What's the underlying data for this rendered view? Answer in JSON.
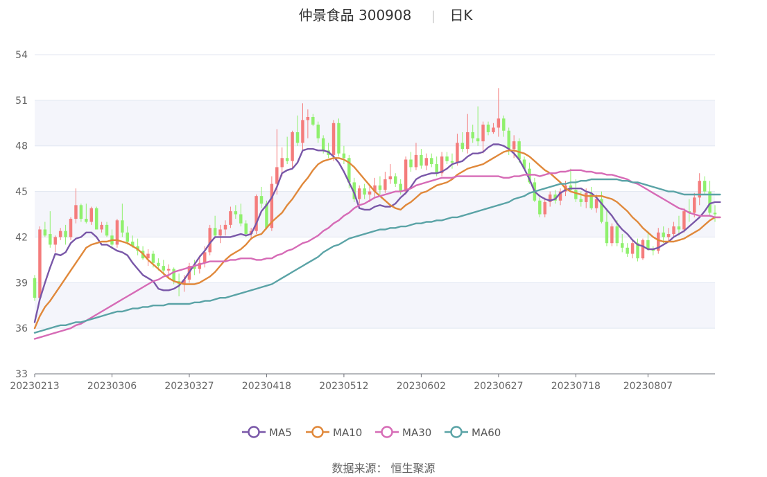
{
  "chart_data": {
    "type": "candlestick",
    "title": "仲景食品 300908",
    "subtitle": "日K",
    "source": "数据来源： 恒生聚源",
    "ylim": [
      33,
      54
    ],
    "yticks": [
      33,
      36,
      39,
      42,
      45,
      48,
      51,
      54
    ],
    "x_tick_labels": [
      "20230213",
      "20230306",
      "20230327",
      "20230418",
      "20230512",
      "20230602",
      "20230627",
      "20230718",
      "20230807"
    ],
    "x_tick_indices": [
      0,
      15,
      30,
      45,
      60,
      75,
      90,
      105,
      119
    ],
    "up_color": "#f47c7c",
    "down_color": "#8ff06d",
    "band_color": "#f4f5fb",
    "ohlc": [
      [
        39.3,
        39.5,
        37.8,
        38.0
      ],
      [
        38.0,
        42.7,
        37.8,
        42.5
      ],
      [
        42.5,
        43.0,
        42.0,
        42.1
      ],
      [
        42.2,
        43.7,
        41.3,
        41.5
      ],
      [
        41.5,
        42.1,
        41.0,
        42.0
      ],
      [
        42.0,
        42.6,
        41.8,
        42.4
      ],
      [
        42.4,
        42.8,
        41.5,
        42.0
      ],
      [
        42.0,
        43.3,
        41.8,
        43.2
      ],
      [
        43.2,
        45.2,
        42.9,
        44.1
      ],
      [
        44.1,
        44.2,
        43.0,
        43.2
      ],
      [
        43.2,
        44.2,
        42.9,
        43.0
      ],
      [
        43.0,
        44.0,
        42.8,
        43.9
      ],
      [
        43.9,
        44.0,
        42.5,
        42.5
      ],
      [
        42.5,
        43.0,
        42.3,
        42.8
      ],
      [
        42.8,
        43.0,
        42.0,
        42.1
      ],
      [
        42.1,
        42.5,
        41.2,
        41.5
      ],
      [
        41.5,
        43.2,
        41.3,
        43.1
      ],
      [
        43.1,
        44.2,
        42.0,
        42.3
      ],
      [
        42.3,
        42.7,
        41.5,
        41.7
      ],
      [
        41.7,
        42.1,
        41.3,
        41.4
      ],
      [
        41.4,
        41.9,
        40.8,
        41.1
      ],
      [
        41.1,
        41.4,
        40.5,
        40.6
      ],
      [
        40.6,
        41.2,
        40.1,
        40.9
      ],
      [
        40.9,
        41.1,
        40.0,
        40.3
      ],
      [
        40.3,
        40.6,
        39.8,
        40.1
      ],
      [
        40.1,
        40.5,
        39.5,
        39.8
      ],
      [
        39.8,
        40.2,
        39.3,
        39.9
      ],
      [
        39.9,
        40.0,
        38.9,
        39.1
      ],
      [
        39.1,
        39.6,
        38.1,
        38.9
      ],
      [
        38.9,
        39.5,
        38.4,
        39.2
      ],
      [
        39.2,
        40.3,
        39.0,
        40.1
      ],
      [
        40.1,
        40.5,
        39.5,
        39.9
      ],
      [
        39.9,
        40.8,
        39.6,
        40.3
      ],
      [
        40.3,
        41.4,
        40.0,
        41.0
      ],
      [
        41.0,
        42.8,
        40.8,
        42.6
      ],
      [
        42.6,
        43.4,
        41.9,
        42.1
      ],
      [
        42.1,
        42.8,
        41.6,
        42.5
      ],
      [
        42.5,
        43.1,
        42.1,
        42.8
      ],
      [
        42.8,
        44.0,
        42.6,
        43.7
      ],
      [
        43.7,
        44.1,
        43.2,
        43.5
      ],
      [
        43.5,
        44.2,
        42.7,
        42.9
      ],
      [
        42.9,
        43.1,
        42.0,
        42.2
      ],
      [
        42.2,
        42.6,
        41.8,
        42.4
      ],
      [
        42.4,
        44.8,
        42.2,
        44.7
      ],
      [
        44.7,
        45.3,
        43.9,
        44.2
      ],
      [
        44.2,
        44.4,
        42.5,
        42.6
      ],
      [
        42.6,
        46.0,
        42.4,
        45.5
      ],
      [
        45.5,
        49.1,
        44.8,
        46.6
      ],
      [
        46.6,
        47.9,
        46.0,
        47.2
      ],
      [
        47.2,
        48.6,
        46.8,
        47.0
      ],
      [
        47.0,
        49.0,
        46.5,
        48.9
      ],
      [
        48.9,
        50.0,
        48.0,
        48.2
      ],
      [
        48.2,
        50.8,
        47.7,
        49.7
      ],
      [
        49.7,
        50.4,
        48.5,
        49.9
      ],
      [
        49.9,
        50.1,
        49.3,
        49.4
      ],
      [
        49.4,
        49.6,
        48.2,
        48.5
      ],
      [
        48.5,
        48.7,
        47.5,
        47.7
      ],
      [
        47.7,
        48.2,
        47.2,
        47.4
      ],
      [
        47.4,
        49.7,
        47.0,
        49.5
      ],
      [
        49.5,
        49.8,
        47.3,
        47.5
      ],
      [
        47.5,
        48.0,
        46.8,
        47.2
      ],
      [
        47.2,
        47.4,
        45.2,
        45.6
      ],
      [
        45.6,
        45.9,
        44.3,
        44.5
      ],
      [
        44.5,
        45.4,
        44.2,
        45.2
      ],
      [
        45.2,
        45.5,
        44.5,
        44.8
      ],
      [
        44.8,
        45.4,
        44.3,
        45.0
      ],
      [
        45.0,
        45.9,
        44.6,
        45.4
      ],
      [
        45.4,
        46.0,
        44.8,
        45.1
      ],
      [
        45.1,
        46.3,
        44.9,
        45.8
      ],
      [
        45.8,
        46.8,
        45.5,
        46.0
      ],
      [
        46.0,
        46.2,
        45.3,
        45.5
      ],
      [
        45.5,
        45.8,
        44.8,
        45.0
      ],
      [
        45.0,
        47.3,
        44.8,
        47.1
      ],
      [
        47.1,
        47.6,
        46.3,
        46.6
      ],
      [
        46.6,
        48.2,
        46.4,
        47.4
      ],
      [
        47.4,
        47.8,
        46.5,
        46.7
      ],
      [
        46.7,
        47.5,
        46.4,
        47.2
      ],
      [
        47.2,
        47.5,
        46.6,
        46.8
      ],
      [
        46.8,
        47.3,
        46.0,
        46.2
      ],
      [
        46.2,
        47.6,
        46.0,
        47.3
      ],
      [
        47.3,
        47.6,
        46.8,
        47.0
      ],
      [
        47.0,
        47.5,
        46.5,
        46.9
      ],
      [
        46.9,
        48.8,
        46.7,
        48.2
      ],
      [
        48.2,
        48.9,
        47.6,
        47.8
      ],
      [
        47.8,
        50.1,
        47.5,
        48.9
      ],
      [
        48.9,
        49.4,
        48.2,
        48.5
      ],
      [
        48.5,
        50.6,
        48.0,
        48.3
      ],
      [
        48.3,
        49.6,
        47.5,
        49.4
      ],
      [
        49.4,
        49.6,
        48.7,
        48.9
      ],
      [
        48.9,
        49.5,
        48.8,
        49.2
      ],
      [
        49.2,
        51.8,
        48.6,
        49.8
      ],
      [
        49.8,
        50.0,
        48.6,
        49.0
      ],
      [
        49.0,
        49.2,
        47.4,
        47.8
      ],
      [
        47.8,
        48.7,
        47.2,
        48.3
      ],
      [
        48.3,
        48.5,
        46.9,
        47.1
      ],
      [
        47.1,
        47.3,
        46.4,
        46.5
      ],
      [
        46.5,
        46.9,
        45.5,
        45.6
      ],
      [
        45.6,
        45.9,
        44.3,
        44.4
      ],
      [
        44.4,
        44.6,
        43.3,
        43.5
      ],
      [
        43.5,
        44.6,
        43.3,
        44.3
      ],
      [
        44.3,
        45.0,
        44.0,
        44.8
      ],
      [
        44.8,
        45.1,
        44.2,
        44.4
      ],
      [
        44.4,
        45.2,
        44.1,
        45.0
      ],
      [
        45.0,
        45.7,
        44.7,
        45.4
      ],
      [
        45.4,
        46.5,
        45.0,
        45.1
      ],
      [
        45.1,
        45.8,
        44.3,
        44.5
      ],
      [
        44.5,
        45.0,
        44.0,
        44.3
      ],
      [
        44.3,
        45.2,
        43.9,
        44.9
      ],
      [
        44.9,
        45.3,
        43.8,
        43.9
      ],
      [
        43.9,
        44.8,
        43.6,
        44.5
      ],
      [
        44.5,
        45.0,
        42.9,
        43.0
      ],
      [
        43.0,
        43.9,
        41.4,
        41.6
      ],
      [
        41.6,
        42.9,
        41.4,
        42.7
      ],
      [
        42.7,
        43.1,
        41.4,
        41.6
      ],
      [
        41.6,
        42.2,
        41.0,
        41.3
      ],
      [
        41.3,
        41.6,
        40.7,
        40.9
      ],
      [
        40.9,
        41.8,
        40.6,
        41.6
      ],
      [
        41.6,
        41.9,
        40.4,
        40.6
      ],
      [
        40.6,
        41.9,
        40.5,
        41.8
      ],
      [
        41.8,
        42.4,
        41.1,
        41.2
      ],
      [
        41.2,
        41.4,
        40.8,
        41.1
      ],
      [
        41.1,
        42.6,
        40.9,
        42.3
      ],
      [
        42.3,
        42.7,
        41.6,
        42.0
      ],
      [
        42.0,
        42.6,
        41.7,
        42.2
      ],
      [
        42.2,
        43.0,
        42.0,
        42.7
      ],
      [
        42.7,
        43.4,
        42.1,
        42.5
      ],
      [
        42.5,
        43.9,
        42.3,
        43.7
      ],
      [
        43.7,
        44.5,
        43.0,
        43.6
      ],
      [
        43.6,
        44.9,
        43.3,
        44.6
      ],
      [
        44.6,
        46.2,
        44.1,
        45.7
      ],
      [
        45.7,
        46.0,
        44.8,
        45.0
      ],
      [
        45.0,
        45.7,
        43.4,
        43.6
      ],
      [
        43.6,
        44.1,
        43.0,
        43.5
      ]
    ],
    "series": [
      {
        "name": "MA5",
        "color": "#7957a8",
        "values": [
          36.4,
          37.9,
          39.0,
          40.0,
          40.9,
          40.8,
          41.0,
          41.6,
          41.9,
          42.0,
          42.3,
          42.3,
          42.0,
          41.5,
          41.5,
          41.3,
          41.1,
          41.0,
          40.8,
          40.3,
          39.9,
          39.5,
          39.3,
          39.1,
          38.6,
          38.5,
          38.5,
          38.6,
          38.8,
          39.2,
          39.7,
          40.2,
          40.7,
          41.1,
          41.6,
          42.0,
          42.0,
          42.0,
          42.0,
          42.1,
          42.2,
          42.1,
          42.2,
          42.9,
          43.7,
          44.1,
          44.6,
          45.3,
          46.2,
          46.4,
          46.5,
          46.9,
          47.7,
          47.8,
          47.8,
          47.7,
          47.7,
          47.6,
          47.3,
          46.9,
          46.3,
          45.6,
          44.9,
          43.9,
          43.8,
          43.8,
          44.0,
          44.1,
          44.0,
          44.0,
          44.2,
          44.6,
          44.9,
          45.3,
          45.8,
          46.0,
          46.1,
          46.2,
          46.2,
          46.3,
          46.5,
          46.8,
          46.9,
          47.0,
          47.3,
          47.5,
          47.5,
          47.6,
          47.9,
          48.1,
          48.1,
          48.0,
          47.8,
          47.5,
          47.1,
          46.5,
          45.8,
          45.0,
          44.7,
          44.5,
          44.4,
          44.5,
          44.9,
          45.1,
          45.2,
          45.2,
          45.2,
          45.0,
          44.9,
          44.6,
          44.2,
          43.8,
          43.4,
          42.9,
          42.5,
          42.2,
          41.8,
          41.5,
          41.4,
          41.2,
          41.2,
          41.3,
          41.5,
          41.7,
          42.0,
          42.2,
          42.4,
          42.7,
          43.0,
          43.3,
          43.7,
          44.2,
          44.3,
          44.3
        ]
      },
      {
        "name": "MA10",
        "color": "#e0883a",
        "values": [
          36.0,
          36.8,
          37.4,
          37.8,
          38.3,
          38.8,
          39.3,
          39.8,
          40.3,
          40.8,
          41.3,
          41.5,
          41.6,
          41.7,
          41.7,
          41.8,
          41.8,
          41.7,
          41.6,
          41.4,
          41.2,
          40.9,
          40.5,
          40.2,
          39.9,
          39.6,
          39.3,
          39.1,
          39.0,
          38.9,
          38.9,
          38.9,
          39.0,
          39.2,
          39.4,
          39.7,
          40.1,
          40.5,
          40.8,
          41.0,
          41.2,
          41.5,
          41.9,
          42.1,
          42.2,
          42.6,
          43.0,
          43.3,
          43.6,
          44.1,
          44.5,
          45.0,
          45.5,
          45.9,
          46.4,
          46.8,
          47.0,
          47.1,
          47.2,
          47.2,
          47.1,
          46.9,
          46.6,
          46.2,
          45.8,
          45.4,
          45.0,
          44.7,
          44.4,
          44.1,
          43.9,
          43.8,
          44.1,
          44.3,
          44.6,
          44.9,
          45.0,
          45.2,
          45.4,
          45.5,
          45.6,
          45.8,
          46.1,
          46.3,
          46.5,
          46.6,
          46.7,
          46.8,
          47.0,
          47.2,
          47.4,
          47.6,
          47.7,
          47.7,
          47.6,
          47.5,
          47.3,
          47.0,
          46.7,
          46.4,
          46.2,
          45.9,
          45.6,
          45.2,
          45.0,
          44.9,
          44.8,
          44.7,
          44.7,
          44.7,
          44.7,
          44.6,
          44.5,
          44.3,
          44.0,
          43.7,
          43.3,
          43.0,
          42.6,
          42.3,
          42.0,
          41.8,
          41.7,
          41.7,
          41.7,
          41.8,
          41.9,
          42.1,
          42.3,
          42.5,
          42.8,
          43.1,
          43.3,
          43.3
        ]
      },
      {
        "name": "MA30",
        "color": "#d66bb6",
        "values": [
          35.3,
          35.4,
          35.5,
          35.6,
          35.7,
          35.8,
          35.9,
          36.0,
          36.2,
          36.3,
          36.5,
          36.7,
          36.9,
          37.1,
          37.3,
          37.5,
          37.7,
          37.9,
          38.1,
          38.3,
          38.5,
          38.7,
          38.9,
          39.1,
          39.2,
          39.4,
          39.5,
          39.7,
          39.8,
          39.9,
          40.0,
          40.1,
          40.2,
          40.3,
          40.4,
          40.4,
          40.4,
          40.4,
          40.5,
          40.5,
          40.6,
          40.6,
          40.6,
          40.5,
          40.5,
          40.6,
          40.6,
          40.8,
          40.9,
          41.1,
          41.2,
          41.4,
          41.6,
          41.7,
          41.9,
          42.1,
          42.4,
          42.6,
          42.9,
          43.1,
          43.4,
          43.6,
          43.9,
          44.1,
          44.2,
          44.4,
          44.6,
          44.7,
          44.8,
          44.9,
          45.0,
          45.0,
          45.1,
          45.2,
          45.4,
          45.5,
          45.6,
          45.7,
          45.8,
          45.9,
          45.9,
          45.9,
          46.0,
          46.0,
          46.0,
          46.0,
          46.0,
          46.0,
          46.0,
          46.0,
          46.0,
          45.9,
          45.9,
          46.0,
          46.0,
          46.1,
          46.1,
          46.1,
          46.0,
          46.1,
          46.2,
          46.2,
          46.3,
          46.3,
          46.4,
          46.4,
          46.4,
          46.3,
          46.3,
          46.2,
          46.2,
          46.1,
          46.1,
          46.0,
          45.9,
          45.8,
          45.6,
          45.5,
          45.3,
          45.1,
          44.9,
          44.7,
          44.5,
          44.3,
          44.1,
          43.9,
          43.8,
          43.6,
          43.5,
          43.4,
          43.4,
          43.4,
          43.3,
          43.3
        ]
      },
      {
        "name": "MA60",
        "color": "#5aa3a6",
        "values": [
          35.7,
          35.8,
          35.9,
          36.0,
          36.1,
          36.2,
          36.2,
          36.3,
          36.4,
          36.4,
          36.5,
          36.6,
          36.7,
          36.8,
          36.9,
          37.0,
          37.1,
          37.1,
          37.2,
          37.3,
          37.3,
          37.4,
          37.4,
          37.5,
          37.5,
          37.5,
          37.6,
          37.6,
          37.6,
          37.6,
          37.6,
          37.7,
          37.7,
          37.8,
          37.8,
          37.9,
          38.0,
          38.0,
          38.1,
          38.2,
          38.3,
          38.4,
          38.5,
          38.6,
          38.7,
          38.8,
          38.9,
          39.1,
          39.3,
          39.5,
          39.7,
          39.9,
          40.1,
          40.3,
          40.5,
          40.7,
          41.0,
          41.2,
          41.4,
          41.5,
          41.7,
          41.9,
          42.0,
          42.1,
          42.2,
          42.3,
          42.4,
          42.5,
          42.5,
          42.6,
          42.6,
          42.7,
          42.7,
          42.8,
          42.9,
          42.9,
          43.0,
          43.0,
          43.1,
          43.1,
          43.2,
          43.3,
          43.3,
          43.4,
          43.5,
          43.6,
          43.7,
          43.8,
          43.9,
          44.0,
          44.1,
          44.2,
          44.3,
          44.5,
          44.6,
          44.7,
          44.9,
          45.0,
          45.1,
          45.2,
          45.3,
          45.4,
          45.5,
          45.5,
          45.6,
          45.6,
          45.7,
          45.7,
          45.8,
          45.8,
          45.8,
          45.8,
          45.8,
          45.8,
          45.7,
          45.7,
          45.6,
          45.6,
          45.5,
          45.4,
          45.3,
          45.2,
          45.1,
          45.0,
          45.0,
          44.9,
          44.8,
          44.8,
          44.8,
          44.8,
          44.8,
          44.8,
          44.8,
          44.8
        ]
      }
    ]
  }
}
